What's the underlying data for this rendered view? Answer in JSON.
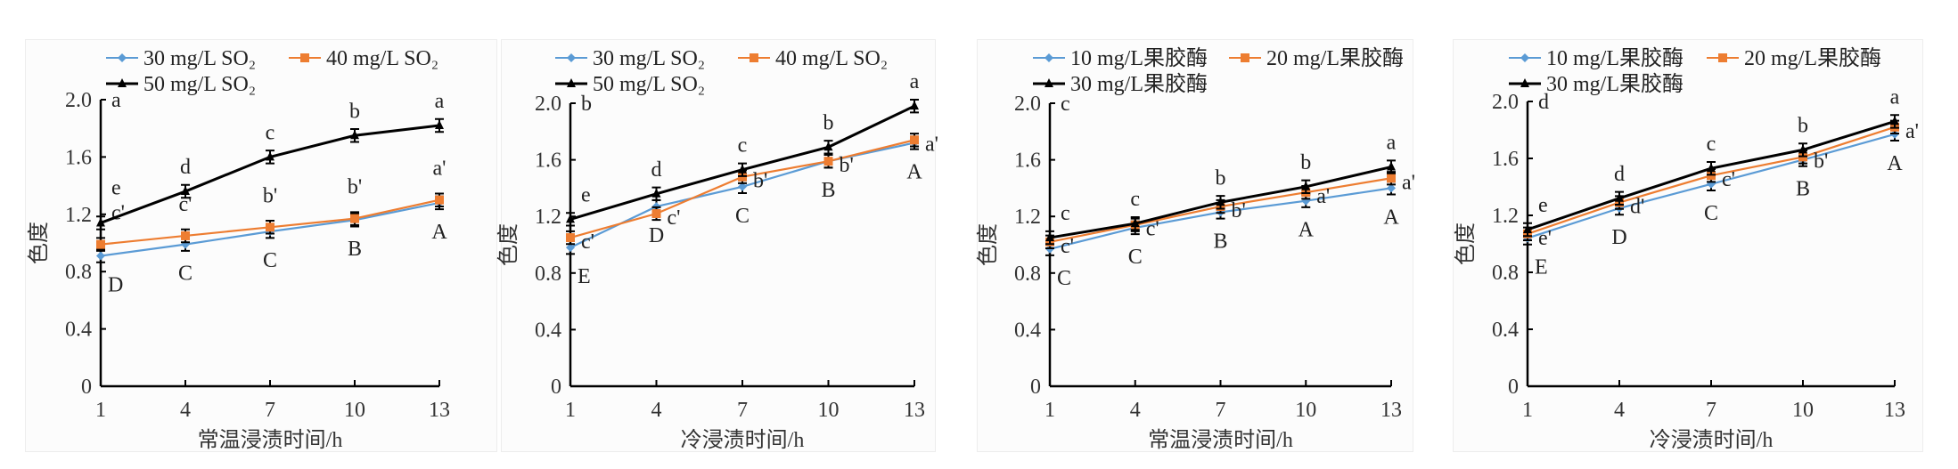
{
  "chart_data": [
    {
      "type": "line",
      "title": "",
      "xlabel": "常温浸渍时间/h",
      "ylabel": "色度",
      "x": [
        1,
        4,
        7,
        10,
        13
      ],
      "xticks": [
        "1",
        "4",
        "7",
        "10",
        "13"
      ],
      "yticks": [
        "0",
        "0.4",
        "0.8",
        "1.2",
        "1.6",
        "2.0"
      ],
      "ylim": [
        0,
        2.0
      ],
      "legend": "top",
      "axis_corner_label": "a",
      "series": [
        {
          "name": "30 mg/L SO₂",
          "color": "#5b9bd5",
          "marker": "diamond",
          "values": [
            0.91,
            0.99,
            1.08,
            1.16,
            1.28
          ],
          "sig": [
            "D",
            "C",
            "C",
            "B",
            "A"
          ],
          "sig_pos": "below"
        },
        {
          "name": "40 mg/L SO₂",
          "color": "#ed7d31",
          "marker": "square",
          "values": [
            0.99,
            1.05,
            1.11,
            1.17,
            1.3
          ],
          "sig": [
            "c'",
            "c'",
            "b'",
            "b'",
            "a'"
          ],
          "sig_pos": "above"
        },
        {
          "name": "50 mg/L SO₂",
          "color": "#000000",
          "marker": "triangle",
          "values": [
            1.14,
            1.36,
            1.6,
            1.75,
            1.82
          ],
          "sig": [
            "e",
            "d",
            "c",
            "b",
            "a"
          ],
          "sig_pos": "above"
        }
      ]
    },
    {
      "type": "line",
      "title": "",
      "xlabel": "冷浸渍时间/h",
      "ylabel": "色度",
      "x": [
        1,
        4,
        7,
        10,
        13
      ],
      "xticks": [
        "1",
        "4",
        "7",
        "10",
        "13"
      ],
      "yticks": [
        "0",
        "0.4",
        "0.8",
        "1.2",
        "1.6",
        "2.0"
      ],
      "ylim": [
        0,
        2.0
      ],
      "legend": "top",
      "axis_corner_label": "b",
      "series": [
        {
          "name": "30 mg/L SO₂",
          "color": "#5b9bd5",
          "marker": "diamond",
          "values": [
            0.98,
            1.27,
            1.41,
            1.59,
            1.72
          ],
          "sig": [
            "E",
            "D",
            "C",
            "B",
            "A"
          ],
          "sig_pos": "below"
        },
        {
          "name": "40 mg/L SO₂",
          "color": "#ed7d31",
          "marker": "square",
          "values": [
            1.05,
            1.22,
            1.48,
            1.59,
            1.74
          ],
          "sig": [
            "c'",
            "c'",
            "b'",
            "b'",
            "a'"
          ],
          "sig_pos": "right"
        },
        {
          "name": "50 mg/L SO₂",
          "color": "#000000",
          "marker": "triangle",
          "values": [
            1.18,
            1.36,
            1.53,
            1.69,
            1.98
          ],
          "sig": [
            "e",
            "d",
            "c",
            "b",
            "a"
          ],
          "sig_pos": "above"
        }
      ]
    },
    {
      "type": "line",
      "title": "",
      "xlabel": "常温浸渍时间/h",
      "ylabel": "色度",
      "x": [
        1,
        4,
        7,
        10,
        13
      ],
      "xticks": [
        "1",
        "4",
        "7",
        "10",
        "13"
      ],
      "yticks": [
        "0",
        "0.4",
        "0.8",
        "1.2",
        "1.6",
        "2.0"
      ],
      "ylim": [
        0,
        2.0
      ],
      "legend": "top",
      "axis_corner_label": "c",
      "series": [
        {
          "name": "10 mg/L果胶酶",
          "color": "#5b9bd5",
          "marker": "diamond",
          "values": [
            0.97,
            1.12,
            1.23,
            1.31,
            1.4
          ],
          "sig": [
            "C",
            "C",
            "B",
            "A",
            "A"
          ],
          "sig_pos": "below"
        },
        {
          "name": "20 mg/L果胶酶",
          "color": "#ed7d31",
          "marker": "square",
          "values": [
            1.02,
            1.14,
            1.27,
            1.37,
            1.47
          ],
          "sig": [
            "c'",
            "c'",
            "b'",
            "a'",
            "a'"
          ],
          "sig_pos": "right"
        },
        {
          "name": "30 mg/L果胶酶",
          "color": "#000000",
          "marker": "triangle",
          "values": [
            1.05,
            1.15,
            1.3,
            1.41,
            1.55
          ],
          "sig": [
            "c",
            "c",
            "b",
            "b",
            "a"
          ],
          "sig_pos": "above"
        }
      ]
    },
    {
      "type": "line",
      "title": "",
      "xlabel": "冷浸渍时间/h",
      "ylabel": "色度",
      "x": [
        1,
        4,
        7,
        10,
        13
      ],
      "xticks": [
        "1",
        "4",
        "7",
        "10",
        "13"
      ],
      "yticks": [
        "0",
        "0.4",
        "0.8",
        "1.2",
        "1.6",
        "2.0"
      ],
      "ylim": [
        0,
        2.0
      ],
      "legend": "top",
      "axis_corner_label": "d",
      "series": [
        {
          "name": "10 mg/L果胶酶",
          "color": "#5b9bd5",
          "marker": "diamond",
          "values": [
            1.04,
            1.25,
            1.42,
            1.59,
            1.77
          ],
          "sig": [
            "E",
            "D",
            "C",
            "B",
            "A"
          ],
          "sig_pos": "below"
        },
        {
          "name": "20 mg/L果胶酶",
          "color": "#ed7d31",
          "marker": "square",
          "values": [
            1.07,
            1.29,
            1.48,
            1.61,
            1.82
          ],
          "sig": [
            "e'",
            "d'",
            "c'",
            "b'",
            "a'"
          ],
          "sig_pos": "right"
        },
        {
          "name": "30 mg/L果胶酶",
          "color": "#000000",
          "marker": "triangle",
          "values": [
            1.1,
            1.32,
            1.53,
            1.66,
            1.86
          ],
          "sig": [
            "e",
            "d",
            "c",
            "b",
            "a"
          ],
          "sig_pos": "above"
        }
      ]
    }
  ]
}
